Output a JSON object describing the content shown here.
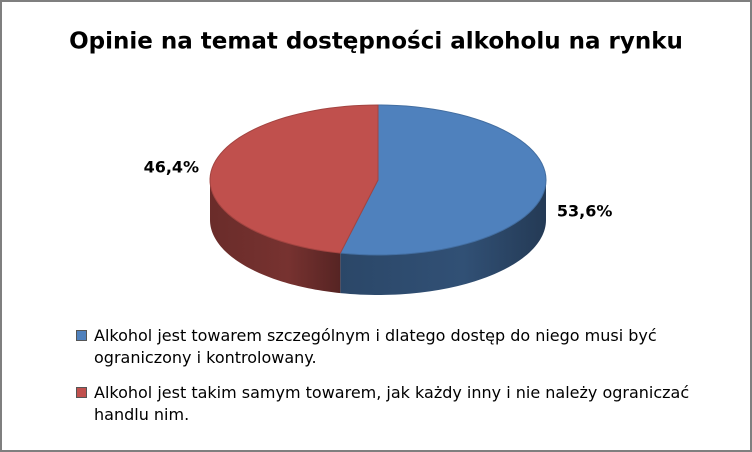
{
  "chart_data": {
    "type": "pie",
    "title": "Opinie na temat dostępności alkoholu na rynku",
    "categories": [
      "Alkohol jest towarem szczególnym i dlatego dostęp do niego musi być ograniczony i kontrolowany.",
      "Alkohol jest takim samym towarem, jak każdy inny i nie należy ograniczać handlu nim."
    ],
    "values": [
      53.6,
      46.4
    ],
    "value_labels": [
      "53,6%",
      "46,4%"
    ],
    "colors": [
      "#4f81bd",
      "#c0504d"
    ],
    "legend": "bottom"
  }
}
